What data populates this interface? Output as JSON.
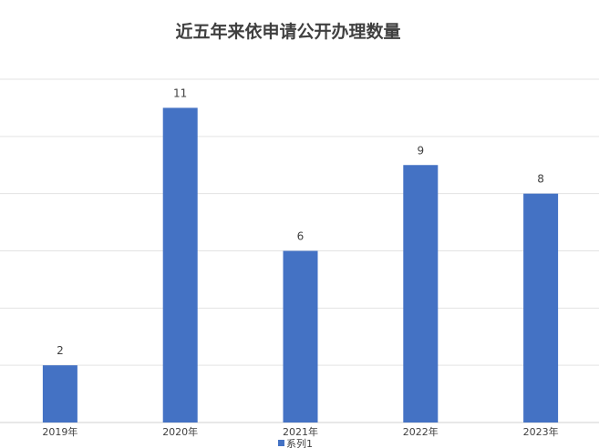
{
  "chart_data": {
    "type": "bar",
    "title": "近五年来依申请公开办理数量",
    "categories": [
      "2019年",
      "2020年",
      "2021年",
      "2022年",
      "2023年"
    ],
    "series": [
      {
        "name": "系列1",
        "values": [
          2,
          11,
          6,
          9,
          8
        ],
        "color": "#4472C4"
      }
    ],
    "xlabel": "",
    "ylabel": "",
    "ylim": [
      0,
      12
    ],
    "ygrid_step": 2,
    "grid": true,
    "data_labels": true,
    "legend": "bottom"
  }
}
